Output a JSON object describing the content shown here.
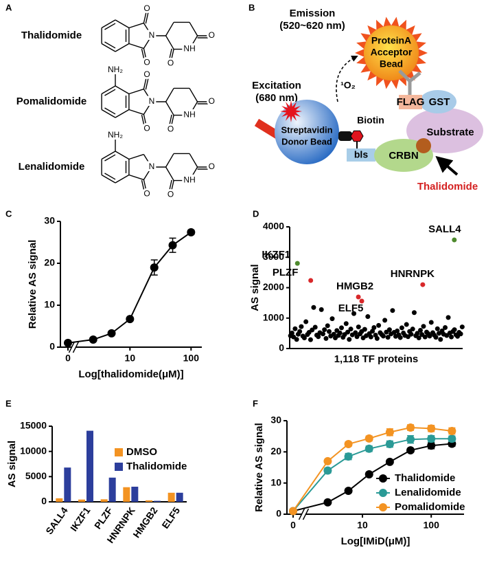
{
  "panel_labels": [
    "A",
    "B",
    "C",
    "D",
    "E",
    "F"
  ],
  "panel_a": {
    "compounds": [
      {
        "name": "Thalidomide",
        "atoms": [
          "O",
          "N",
          "O",
          "NH",
          "O",
          "O"
        ]
      },
      {
        "name": "Pomalidomide",
        "atoms": [
          "NH₂",
          "O",
          "N",
          "O",
          "NH",
          "O",
          "O"
        ]
      },
      {
        "name": "Lenalidomide",
        "atoms": [
          "NH₂",
          "N",
          "O",
          "NH",
          "O",
          "O"
        ]
      }
    ]
  },
  "panel_b": {
    "emission": [
      "Emission",
      "(520~620 nm)"
    ],
    "acceptor": [
      "ProteinA",
      "Acceptor",
      "Bead"
    ],
    "excitation": [
      "Excitation",
      "(680 nm)"
    ],
    "singlet_oxygen": "¹O₂",
    "donor": [
      "Streptavidin",
      "Donor Bead"
    ],
    "biotin": "Biotin",
    "bls": "bls",
    "crbn": "CRBN",
    "flag": "FLAG",
    "gst": "GST",
    "substrate": "Substrate",
    "drug": "Thalidomide"
  },
  "chart_data": [
    {
      "type": "line",
      "ylabel": "Relative AS signal",
      "xlabel": "Log[thalidomide(μM)]",
      "x": [
        0,
        2.5,
        5,
        10,
        25,
        50,
        100
      ],
      "series": [
        {
          "color": "#000000",
          "values": [
            1,
            1.8,
            3.3,
            6.7,
            19,
            24.3,
            27.4
          ],
          "errors": [
            0.2,
            0.2,
            0.3,
            0.4,
            1.8,
            1.7,
            0.5
          ]
        }
      ],
      "xscale": "log",
      "axis_break": true,
      "xlim": [
        1.5,
        150
      ],
      "xticks": [
        0,
        10,
        100
      ],
      "ylim": [
        0,
        30
      ],
      "yticks": [
        0,
        10,
        20,
        30
      ]
    },
    {
      "type": "scatter",
      "ylabel": "AS signal",
      "xlabel": "1,118 TF proteins",
      "xlim": [
        0,
        1118
      ],
      "ylim": [
        0,
        4000
      ],
      "yticks": [
        0,
        1000,
        2000,
        3000,
        4000
      ],
      "series": [
        {
          "color": "#000000",
          "x": [
            5,
            15,
            25,
            35,
            45,
            55,
            65,
            75,
            85,
            95,
            105,
            115,
            125,
            135,
            145,
            155,
            165,
            175,
            185,
            195,
            205,
            215,
            225,
            235,
            245,
            255,
            265,
            275,
            285,
            295,
            305,
            315,
            325,
            335,
            345,
            355,
            365,
            375,
            385,
            395,
            405,
            415,
            425,
            435,
            445,
            455,
            465,
            475,
            485,
            495,
            505,
            515,
            525,
            535,
            545,
            555,
            565,
            575,
            585,
            595,
            605,
            615,
            625,
            635,
            645,
            655,
            665,
            675,
            685,
            695,
            705,
            715,
            725,
            735,
            745,
            755,
            765,
            775,
            785,
            795,
            805,
            815,
            825,
            835,
            845,
            855,
            865,
            875,
            885,
            895,
            905,
            915,
            925,
            935,
            945,
            955,
            965,
            975,
            985,
            995,
            1005,
            1015,
            1025,
            1035,
            1045,
            1055,
            1065,
            1075,
            1085,
            1095,
            1105,
            1115
          ],
          "values": [
            420,
            510,
            380,
            650,
            300,
            470,
            560,
            720,
            410,
            350,
            880,
            460,
            530,
            290,
            610,
            1350,
            700,
            440,
            390,
            520,
            1280,
            480,
            620,
            330,
            750,
            560,
            410,
            980,
            470,
            350,
            590,
            430,
            510,
            680,
            370,
            460,
            820,
            540,
            300,
            640,
            450,
            1150,
            520,
            390,
            710,
            480,
            560,
            350,
            630,
            420,
            1050,
            490,
            380,
            570,
            690,
            440,
            330,
            760,
            520,
            460,
            410,
            930,
            540,
            370,
            620,
            480,
            1250,
            530,
            400,
            580,
            450,
            360,
            680,
            510,
            430,
            790,
            390,
            560,
            470,
            640,
            1180,
            420,
            500,
            350,
            600,
            460,
            730,
            380,
            540,
            490,
            410,
            860,
            520,
            440,
            370,
            650,
            500,
            300,
            580,
            470,
            690,
            430,
            1020,
            510,
            380,
            560,
            620,
            450,
            400,
            530,
            480,
            710
          ]
        }
      ],
      "labeled_points": [
        {
          "label": "SALL4",
          "x": 1064,
          "value": 3570,
          "color": "#4e8a2e"
        },
        {
          "label": "IKZF1",
          "x": 50,
          "value": 2800,
          "color": "#4e8a2e"
        },
        {
          "label": "PLZF",
          "x": 136,
          "value": 2237,
          "color": "#d8282a"
        },
        {
          "label": "HMGB2",
          "x": 444,
          "value": 1695,
          "color": "#d8282a"
        },
        {
          "label": "ELF5",
          "x": 466,
          "value": 1560,
          "color": "#d8282a"
        },
        {
          "label": "HNRNPK",
          "x": 860,
          "value": 2100,
          "color": "#d8282a"
        }
      ]
    },
    {
      "type": "bar",
      "ylabel": "AS signal",
      "categories": [
        "SALL4",
        "IKZF1",
        "PLZF",
        "HNRNPK",
        "HMGB2",
        "ELF5"
      ],
      "series": [
        {
          "name": "DMSO",
          "color": "#f39322",
          "values": [
            700,
            450,
            500,
            2900,
            300,
            1800
          ]
        },
        {
          "name": "Thalidomide",
          "color": "#2c3e9c",
          "values": [
            6800,
            14100,
            4800,
            3000,
            200,
            1800
          ]
        }
      ],
      "ylim": [
        0,
        15000
      ],
      "yticks": [
        0,
        5000,
        10000,
        15000
      ],
      "legend": "upper right"
    },
    {
      "type": "line",
      "ylabel": "Relative AS signal",
      "xlabel": "Log[IMiD(μM)]",
      "x": [
        0,
        3.125,
        6.25,
        12.5,
        25,
        50,
        100,
        200
      ],
      "series": [
        {
          "name": "Thalidomide",
          "color": "#000000",
          "values": [
            1,
            3.8,
            7.5,
            12.8,
            16.8,
            20.5,
            22,
            22.6
          ],
          "errors": [
            0.2,
            0.2,
            0.3,
            0.3,
            0.4,
            0.6,
            1,
            0.8
          ]
        },
        {
          "name": "Lenalidomide",
          "color": "#2a9a96",
          "values": [
            1,
            14,
            18.5,
            21,
            22.5,
            24,
            24.2,
            24.2
          ],
          "errors": [
            0.2,
            0.8,
            1,
            0.9,
            1,
            1.2,
            1,
            0.9
          ]
        },
        {
          "name": "Pomalidomide",
          "color": "#f39322",
          "values": [
            1,
            17,
            22.5,
            24.3,
            26.3,
            27.8,
            27.5,
            26.7
          ],
          "errors": [
            0.2,
            0.6,
            0.7,
            0.8,
            1.1,
            0.9,
            1,
            1
          ]
        }
      ],
      "xscale": "log",
      "axis_break": true,
      "xlim": [
        2,
        300
      ],
      "xticks": [
        0,
        10,
        100
      ],
      "ylim": [
        0,
        30
      ],
      "yticks": [
        0,
        10,
        20,
        30
      ],
      "legend": "lower right"
    }
  ]
}
